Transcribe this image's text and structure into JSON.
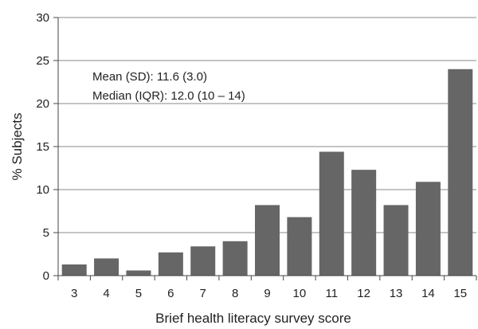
{
  "chart_data": {
    "type": "bar",
    "categories": [
      "3",
      "4",
      "5",
      "6",
      "7",
      "8",
      "9",
      "10",
      "11",
      "12",
      "13",
      "14",
      "15"
    ],
    "values": [
      1.3,
      2.0,
      0.6,
      2.7,
      3.4,
      4.0,
      8.2,
      6.8,
      14.4,
      12.3,
      8.2,
      10.9,
      24.0
    ],
    "xlabel": "Brief health literacy survey score",
    "ylabel": "% Subjects",
    "ylim": [
      0,
      30
    ],
    "yticks": [
      "0",
      "5",
      "10",
      "15",
      "20",
      "25",
      "30"
    ],
    "grid": true,
    "bar_color": "#666666",
    "annotations": [
      "Mean (SD): 11.6 (3.0)",
      "Median (IQR): 12.0 (10 – 14)"
    ]
  }
}
